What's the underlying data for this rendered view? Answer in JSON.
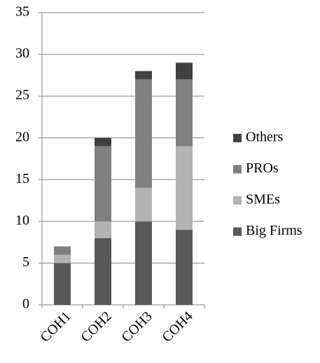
{
  "chart_data": {
    "type": "stacked_bar",
    "categories": [
      "COH1",
      "COH2",
      "COH3",
      "COH4"
    ],
    "series": [
      {
        "name": "Big Firms",
        "color": "#595959",
        "values": [
          5,
          8,
          10,
          9
        ]
      },
      {
        "name": "SMEs",
        "color": "#b3b3b3",
        "values": [
          1,
          2,
          4,
          10
        ]
      },
      {
        "name": "PROs",
        "color": "#808080",
        "values": [
          1,
          9,
          13,
          8
        ]
      },
      {
        "name": "Others",
        "color": "#404040",
        "values": [
          0,
          1,
          1,
          2
        ]
      }
    ],
    "ylim": [
      0,
      35
    ],
    "yticks": [
      0,
      5,
      10,
      15,
      20,
      25,
      30,
      35
    ],
    "grid": true,
    "legend": "right"
  }
}
